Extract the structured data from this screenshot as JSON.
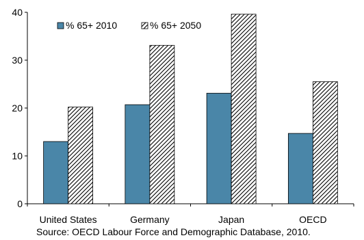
{
  "chart_data": {
    "type": "bar",
    "categories": [
      "United States",
      "Germany",
      "Japan",
      "OECD"
    ],
    "series": [
      {
        "name": "% 65+ 2010",
        "values": [
          13.0,
          20.7,
          23.1,
          14.7
        ],
        "color": "#4a86a8",
        "pattern": "solid"
      },
      {
        "name": "% 65+ 2050",
        "values": [
          20.2,
          33.1,
          39.6,
          25.5
        ],
        "color": "#000000",
        "pattern": "hatched"
      }
    ],
    "ylim": [
      0,
      40
    ],
    "yticks": [
      0,
      10,
      20,
      30,
      40
    ],
    "grid": false,
    "legend_position": "top-left",
    "source": "Source: OECD Labour Force and Demographic Database, 2010."
  }
}
